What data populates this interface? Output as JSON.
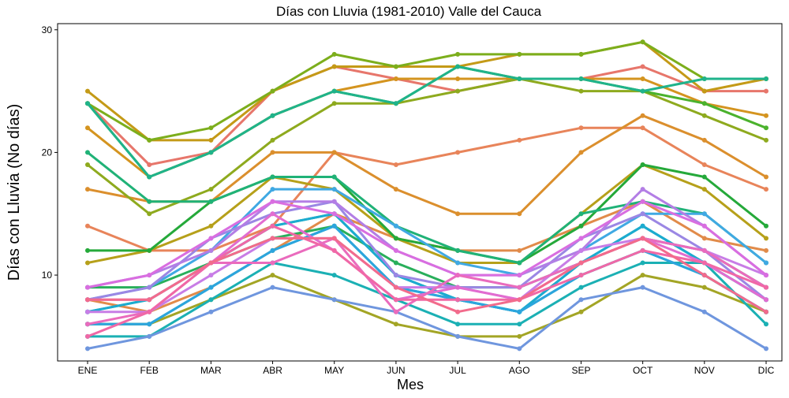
{
  "chart_data": {
    "type": "line",
    "title": "Días con Lluvia (1981-2010)  Valle del Cauca",
    "xlabel": "Mes",
    "ylabel": "Días con Lluvia (No días)",
    "categories": [
      "ENE",
      "FEB",
      "MAR",
      "ABR",
      "MAY",
      "JUN",
      "JUL",
      "AGO",
      "SEP",
      "OCT",
      "NOV",
      "DIC"
    ],
    "ylim": [
      3,
      30.5
    ],
    "yticks": [
      10,
      20,
      30
    ],
    "grid": false,
    "legend": "none",
    "series": [
      {
        "color": "#e7766b",
        "values": [
          24,
          19,
          20,
          25,
          27,
          26,
          25,
          26,
          26,
          27,
          25,
          25
        ]
      },
      {
        "color": "#e8845a",
        "values": [
          14,
          12,
          12,
          14,
          20,
          19,
          20,
          21,
          22,
          22,
          19,
          17
        ]
      },
      {
        "color": "#db8f2d",
        "values": [
          17,
          16,
          16,
          20,
          20,
          17,
          15,
          15,
          20,
          23,
          21,
          18
        ]
      },
      {
        "color": "#d4941f",
        "values": [
          22,
          18,
          20,
          23,
          25,
          26,
          26,
          26,
          26,
          26,
          24,
          23
        ]
      },
      {
        "color": "#e18b4a",
        "values": [
          8,
          7,
          9,
          12,
          15,
          13,
          12,
          12,
          14,
          16,
          13,
          12
        ]
      },
      {
        "color": "#c49a17",
        "values": [
          25,
          21,
          21,
          25,
          27,
          27,
          27,
          28,
          28,
          29,
          25,
          26
        ]
      },
      {
        "color": "#b6a01a",
        "values": [
          11,
          12,
          14,
          18,
          17,
          13,
          11,
          11,
          15,
          19,
          17,
          13
        ]
      },
      {
        "color": "#a3a525",
        "values": [
          6,
          6,
          8,
          10,
          8,
          6,
          5,
          5,
          7,
          10,
          9,
          7
        ]
      },
      {
        "color": "#8eaa1e",
        "values": [
          19,
          15,
          17,
          21,
          24,
          24,
          25,
          26,
          25,
          25,
          23,
          21
        ]
      },
      {
        "color": "#7cae1c",
        "values": [
          24,
          21,
          22,
          25,
          28,
          27,
          28,
          28,
          28,
          29,
          26,
          26
        ]
      },
      {
        "color": "#4bb22d",
        "values": [
          24,
          18,
          20,
          23,
          25,
          24,
          27,
          26,
          26,
          25,
          24,
          22
        ]
      },
      {
        "color": "#25a93a",
        "values": [
          12,
          12,
          16,
          18,
          18,
          13,
          12,
          11,
          14,
          19,
          18,
          14
        ]
      },
      {
        "color": "#29af5b",
        "values": [
          9,
          9,
          11,
          13,
          14,
          11,
          9,
          9,
          11,
          13,
          12,
          9
        ]
      },
      {
        "color": "#20b277",
        "values": [
          20,
          16,
          16,
          18,
          18,
          14,
          12,
          11,
          15,
          16,
          15,
          11
        ]
      },
      {
        "color": "#1fb38b",
        "values": [
          24,
          18,
          20,
          23,
          25,
          24,
          27,
          26,
          26,
          25,
          26,
          26
        ]
      },
      {
        "color": "#18b49c",
        "values": [
          7,
          8,
          11,
          14,
          15,
          10,
          8,
          7,
          11,
          14,
          11,
          8
        ]
      },
      {
        "color": "#1bb0b4",
        "values": [
          5,
          5,
          8,
          11,
          10,
          8,
          6,
          6,
          9,
          11,
          11,
          6
        ]
      },
      {
        "color": "#1fb2c5",
        "values": [
          6,
          6,
          9,
          12,
          14,
          9,
          8,
          7,
          10,
          12,
          10,
          7
        ]
      },
      {
        "color": "#1cabd0",
        "values": [
          7,
          8,
          11,
          14,
          15,
          10,
          8,
          7,
          11,
          14,
          11,
          8
        ]
      },
      {
        "color": "#2ca5dd",
        "values": [
          6,
          6,
          9,
          12,
          14,
          9,
          8,
          7,
          10,
          12,
          10,
          7
        ]
      },
      {
        "color": "#40a9e3",
        "values": [
          8,
          9,
          12,
          17,
          17,
          14,
          11,
          10,
          12,
          15,
          15,
          11
        ]
      },
      {
        "color": "#6f96de",
        "values": [
          4,
          5,
          7,
          9,
          8,
          7,
          5,
          4,
          8,
          9,
          7,
          4
        ]
      },
      {
        "color": "#9b87e4",
        "values": [
          8,
          9,
          13,
          15,
          16,
          10,
          9,
          9,
          13,
          15,
          12,
          8
        ]
      },
      {
        "color": "#b37ee5",
        "values": [
          9,
          10,
          12,
          16,
          16,
          12,
          10,
          10,
          12,
          17,
          14,
          10
        ]
      },
      {
        "color": "#c87de6",
        "values": [
          7,
          7,
          10,
          13,
          13,
          9,
          9,
          8,
          12,
          13,
          12,
          10
        ]
      },
      {
        "color": "#d96ee0",
        "values": [
          9,
          10,
          13,
          16,
          15,
          12,
          10,
          10,
          13,
          16,
          14,
          10
        ]
      },
      {
        "color": "#e26cd0",
        "values": [
          8,
          8,
          11,
          15,
          12,
          8,
          9,
          8,
          11,
          13,
          11,
          8
        ]
      },
      {
        "color": "#ea6bbd",
        "values": [
          6,
          7,
          11,
          11,
          13,
          7,
          10,
          9,
          11,
          13,
          12,
          9
        ]
      },
      {
        "color": "#f068a6",
        "values": [
          5,
          7,
          11,
          14,
          12,
          8,
          8,
          8,
          10,
          12,
          11,
          9
        ]
      },
      {
        "color": "#f26b8c",
        "values": [
          8,
          8,
          11,
          13,
          13,
          9,
          7,
          8,
          11,
          13,
          10,
          7
        ]
      }
    ]
  }
}
